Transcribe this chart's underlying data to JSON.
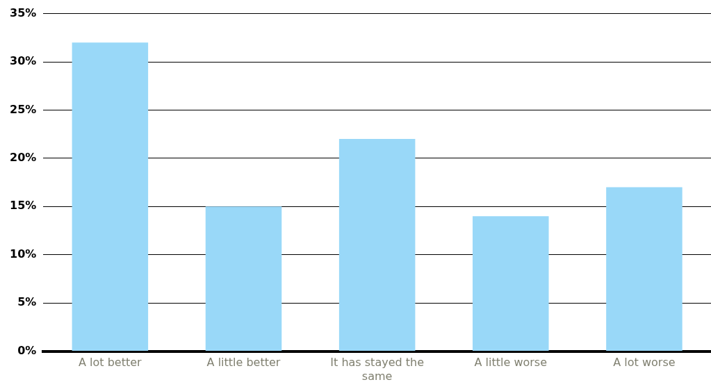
{
  "chart_data": {
    "type": "bar",
    "categories": [
      "A lot better",
      "A little better",
      "It has stayed the same",
      "A little worse",
      "A lot worse"
    ],
    "values": [
      32,
      15,
      22,
      14,
      17
    ],
    "color": "#99d8f8",
    "ylim": [
      0,
      35
    ],
    "yticks": [
      {
        "value": 0,
        "label": "0%"
      },
      {
        "value": 5,
        "label": "5%"
      },
      {
        "value": 10,
        "label": "10%"
      },
      {
        "value": 15,
        "label": "15%"
      },
      {
        "value": 20,
        "label": "20%"
      },
      {
        "value": 25,
        "label": "25%"
      },
      {
        "value": 30,
        "label": "30%"
      },
      {
        "value": 35,
        "label": "35%"
      }
    ],
    "grid": "y"
  }
}
